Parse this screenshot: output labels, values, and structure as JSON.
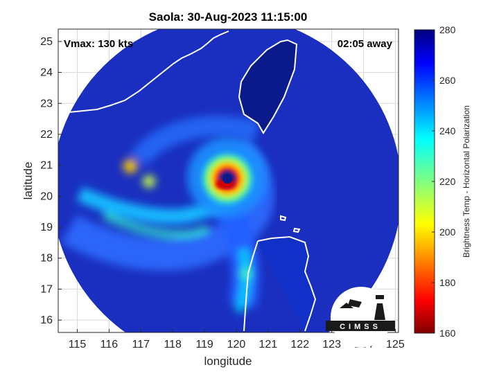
{
  "chart_data": {
    "type": "heatmap",
    "title": "Saola: 30-Aug-2023 11:15:00",
    "xlabel": "longitude",
    "ylabel": "latitude",
    "xlim": [
      114.4,
      125.1
    ],
    "ylim": [
      15.6,
      25.4
    ],
    "xticks": [
      115,
      116,
      117,
      118,
      119,
      120,
      121,
      122,
      123,
      124,
      125
    ],
    "yticks": [
      16,
      17,
      18,
      19,
      20,
      21,
      22,
      23,
      24,
      25
    ],
    "grid": true,
    "annotations": {
      "vmax": "Vmax: 130 kts",
      "time_away": "02:05 away",
      "logo_text": "CIMSS"
    },
    "colorbar": {
      "label": "Brightness Temp - Horizontal Polarization",
      "range": [
        160,
        280
      ],
      "ticks": [
        160,
        180,
        200,
        220,
        240,
        260,
        280
      ],
      "colormap": "jet"
    },
    "storm_center": {
      "lon": 119.6,
      "lat": 20.5
    },
    "swath_center": {
      "lon": 119.7,
      "lat": 20.2
    },
    "swath_radius_deg": 5.5
  },
  "colors": {
    "background_swath": "#1a2fbf",
    "coastline": "#ffffff",
    "grid": "#d9d9d9"
  }
}
